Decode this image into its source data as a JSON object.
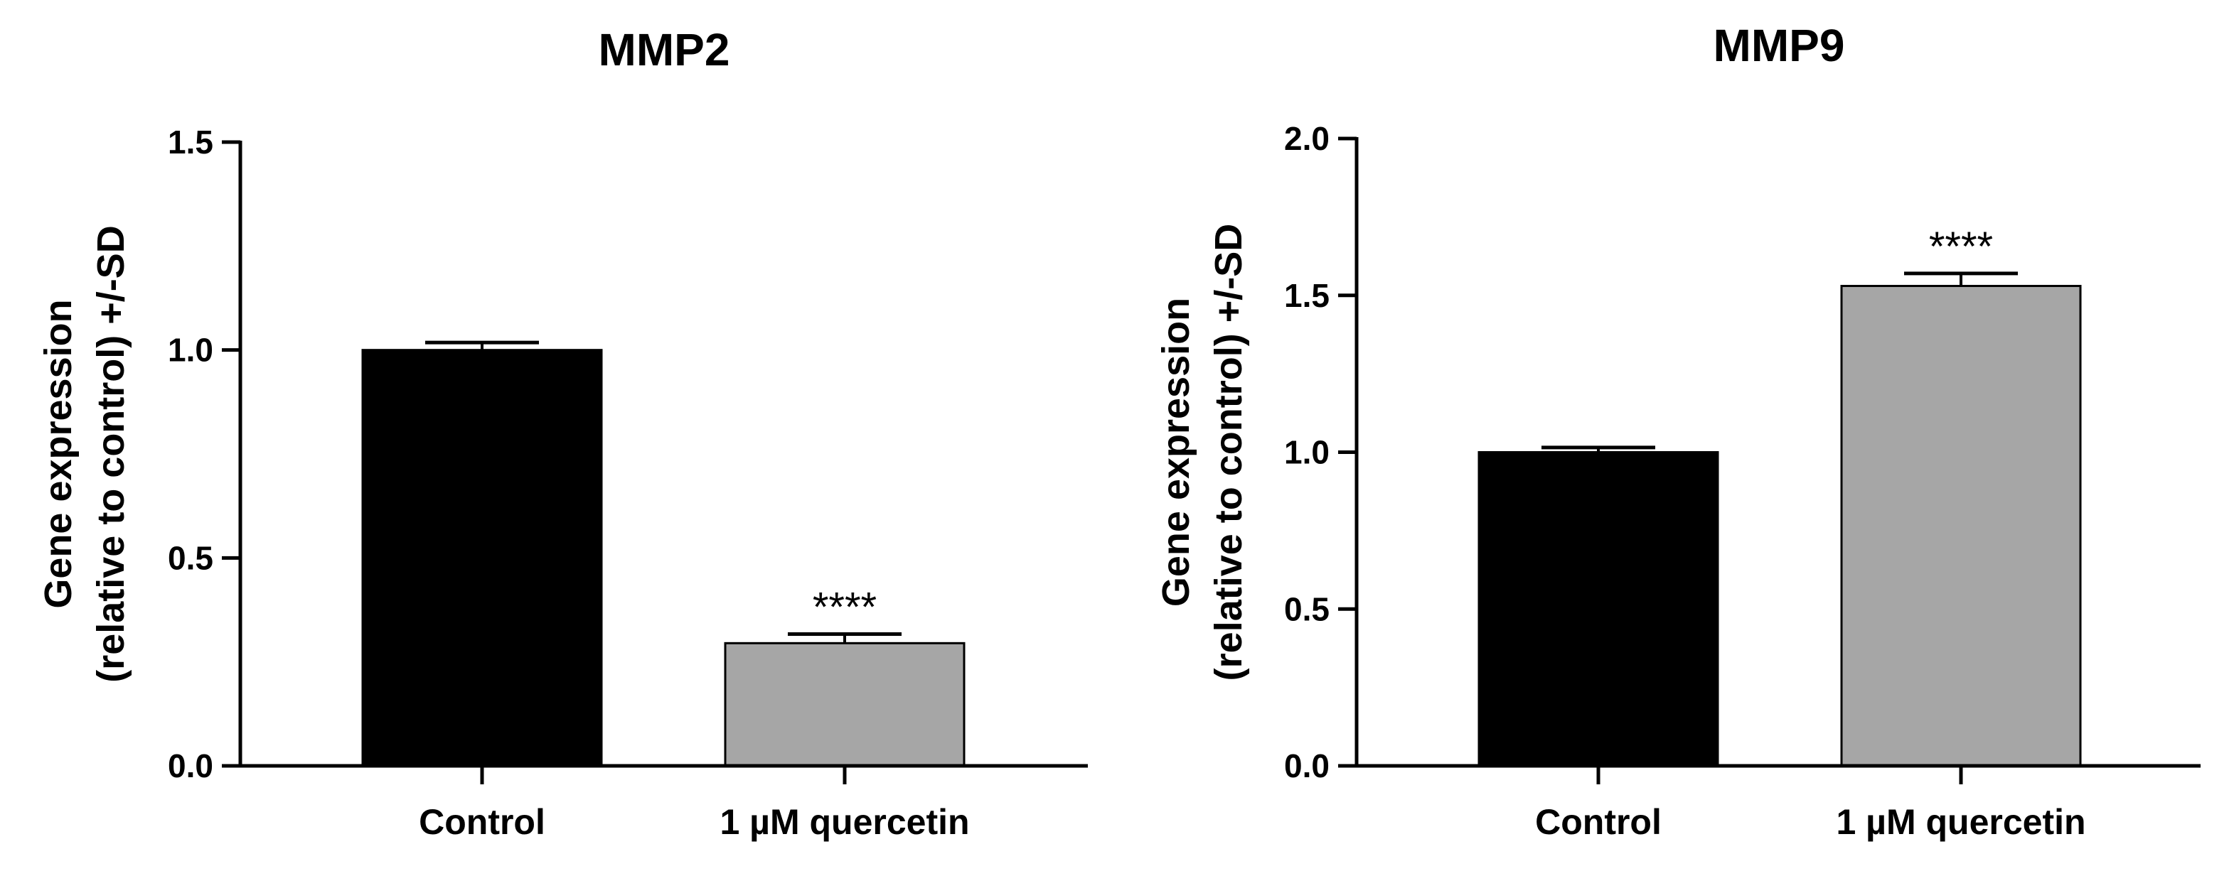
{
  "chart_data": [
    {
      "type": "bar",
      "title": "MMP2",
      "xlabel": "",
      "ylabel_lines": [
        "Gene expression",
        "(relative to control) +/-SD"
      ],
      "categories": [
        "Control",
        "1 µM quercetin"
      ],
      "values": [
        1.0,
        0.295
      ],
      "errors": [
        0.018,
        0.022
      ],
      "annotations": [
        "",
        "****"
      ],
      "bar_colors": [
        "#000000",
        "#a6a6a6"
      ],
      "ylim": [
        0,
        1.5
      ],
      "yticks": [
        0.0,
        0.5,
        1.0,
        1.5
      ],
      "ytick_labels": [
        "0.0",
        "0.5",
        "1.0",
        "1.5"
      ],
      "grid": false,
      "legend": "none"
    },
    {
      "type": "bar",
      "title": "MMP9",
      "xlabel": "",
      "ylabel_lines": [
        "Gene expression",
        "(relative to control) +/-SD"
      ],
      "categories": [
        "Control",
        "1 µM quercetin"
      ],
      "values": [
        1.0,
        1.53
      ],
      "errors": [
        0.015,
        0.04
      ],
      "annotations": [
        "",
        "****"
      ],
      "bar_colors": [
        "#000000",
        "#a6a6a6"
      ],
      "ylim": [
        0,
        2.0
      ],
      "yticks": [
        0.0,
        0.5,
        1.0,
        1.5,
        2.0
      ],
      "ytick_labels": [
        "0.0",
        "0.5",
        "1.0",
        "1.5",
        "2.0"
      ],
      "grid": false,
      "legend": "none"
    }
  ]
}
